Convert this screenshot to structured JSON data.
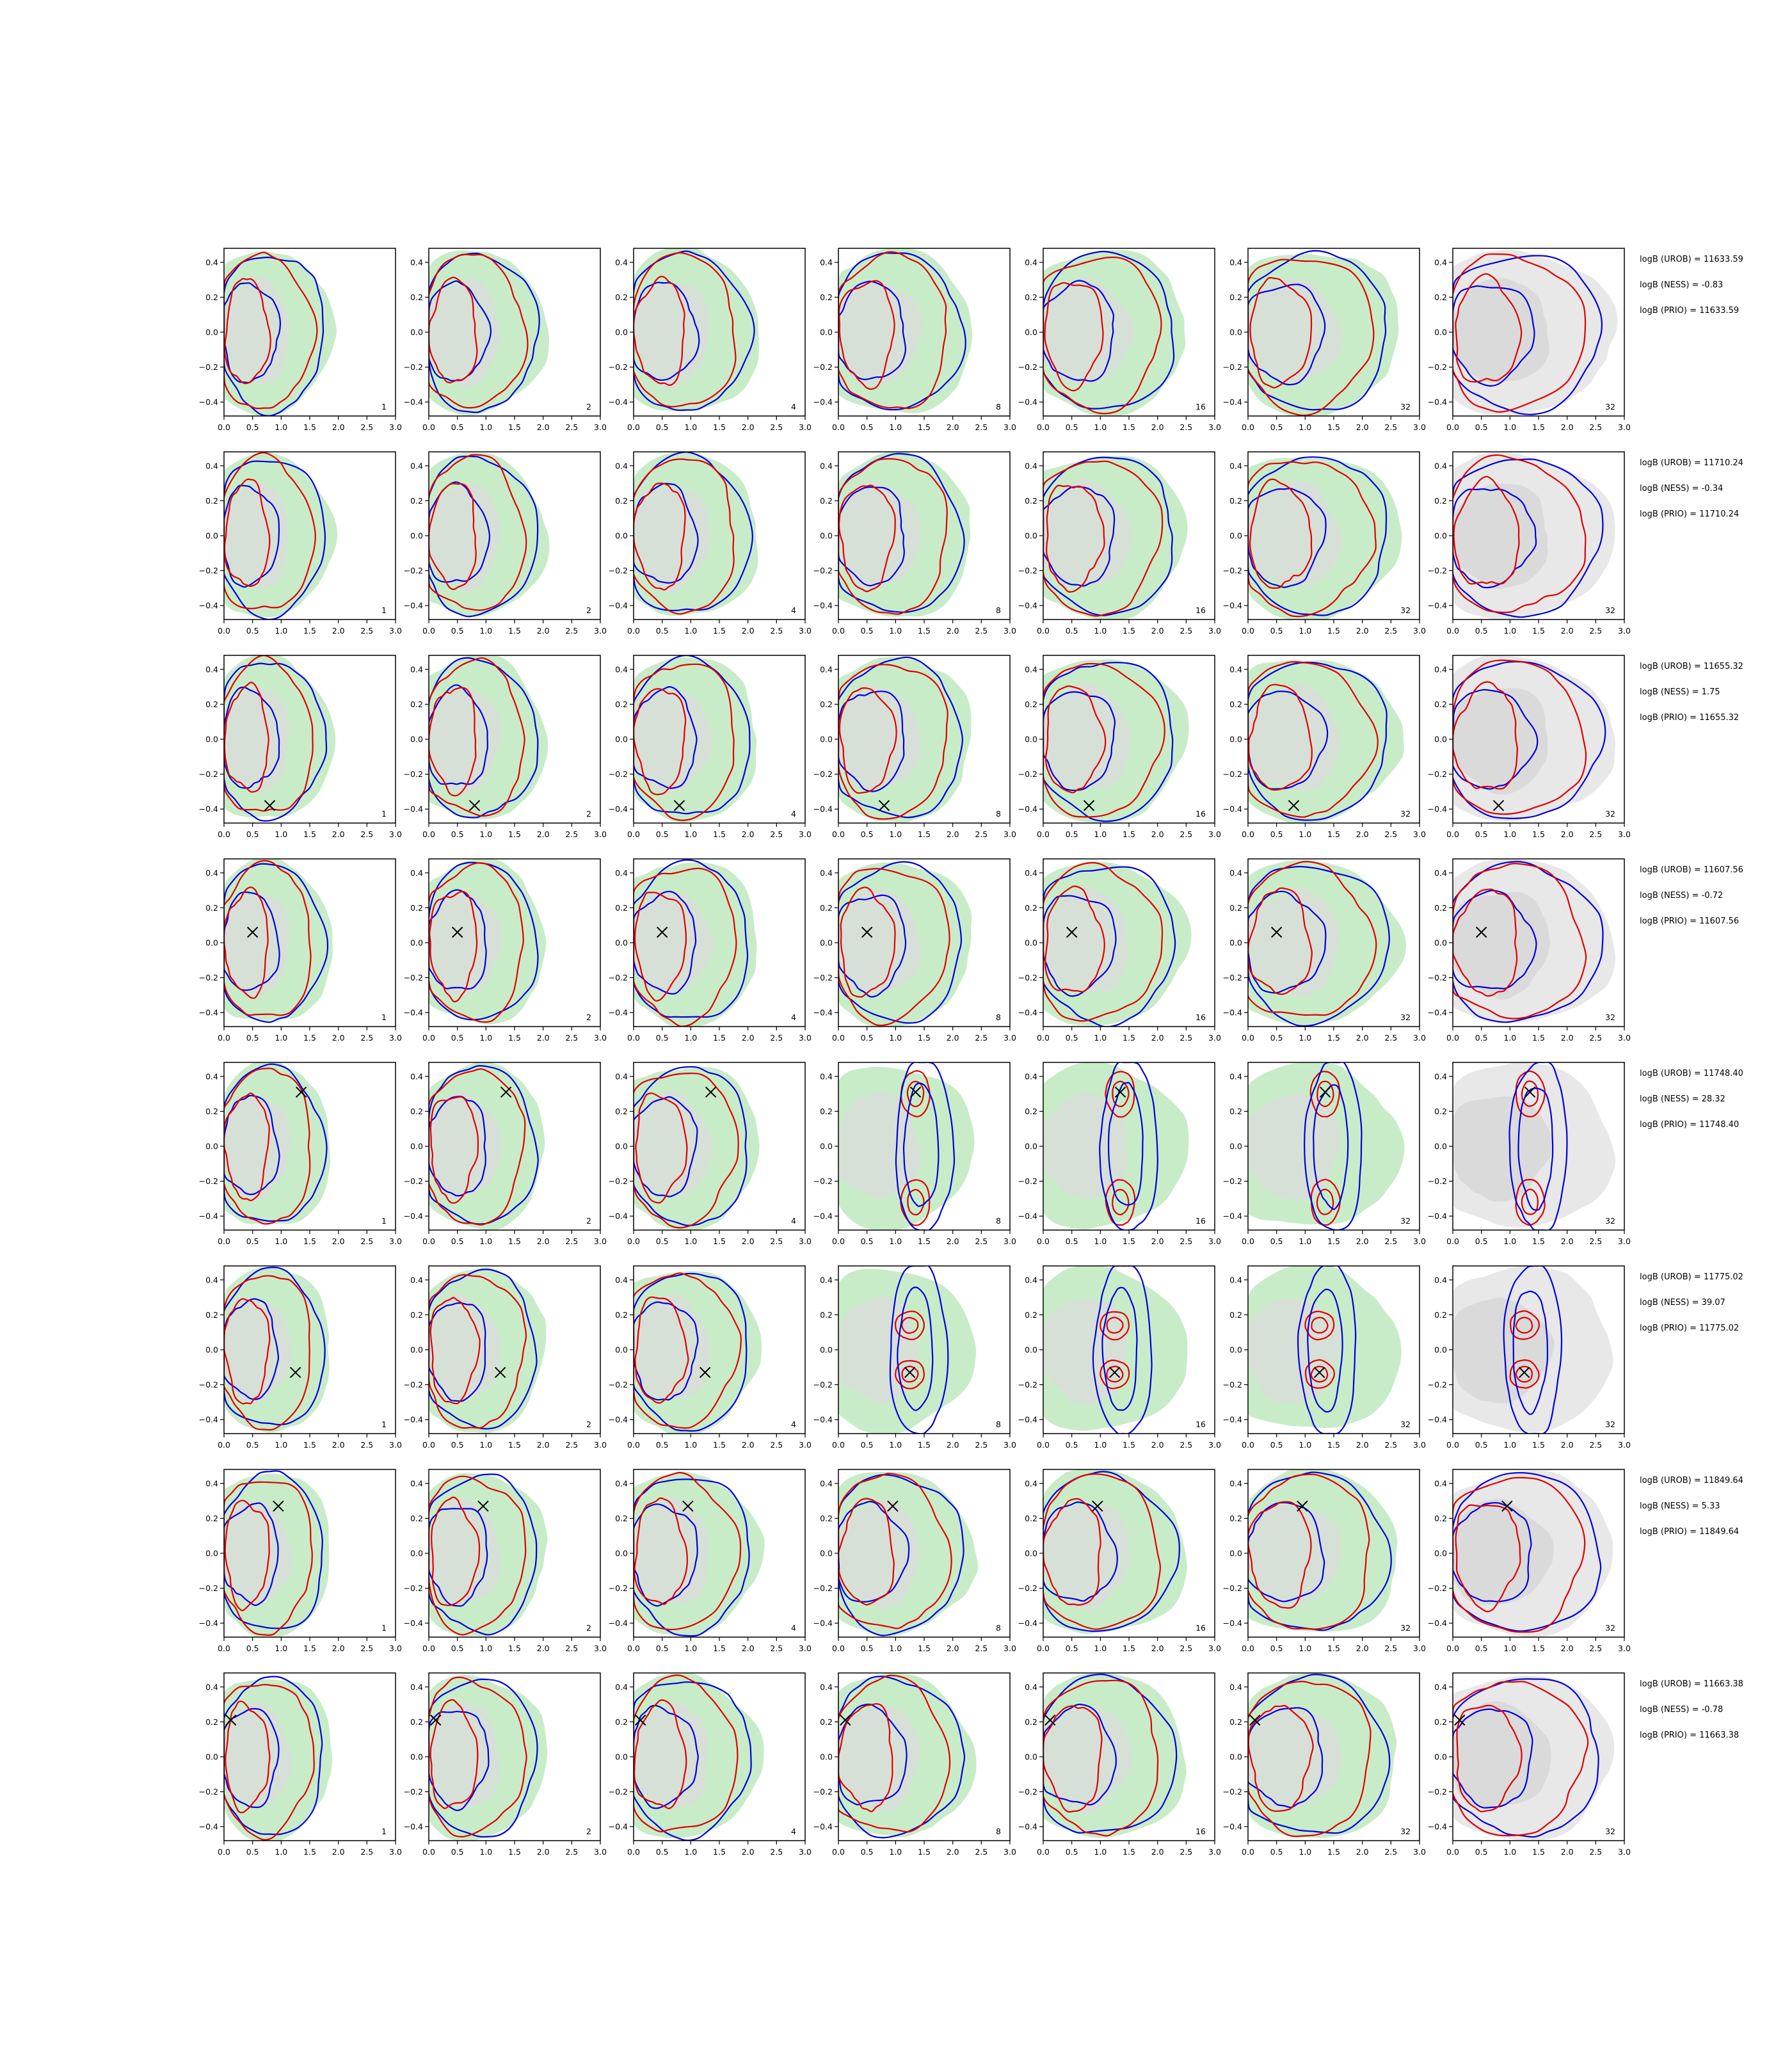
{
  "chart_data": {
    "type": "contour-grid",
    "x_ticks": [
      "0.0",
      "0.5",
      "1.0",
      "1.5",
      "2.0",
      "2.5",
      "3.0"
    ],
    "y_ticks": [
      "0.4",
      "0.2",
      "0.0",
      "−0.2",
      "−0.4"
    ],
    "xlim": [
      0,
      3
    ],
    "ylim": [
      -0.48,
      0.48
    ],
    "panel_labels": [
      "1",
      "2",
      "4",
      "8",
      "16",
      "32",
      "32"
    ],
    "colors": {
      "filled_main": "#c8ecc8",
      "filled_inner": "#dcdcdc",
      "filled_last": "#e8e8e8",
      "red": "#e00000",
      "blue": "#0000e0"
    },
    "rows": [
      {
        "marker": null,
        "notes": [
          "logB (UROB) = 11633.59",
          "logB (NESS) = -0.83",
          "logB (PRIO) = 11633.59"
        ]
      },
      {
        "marker": null,
        "notes": [
          "logB (UROB) = 11710.24",
          "logB (NESS) = -0.34",
          "logB (PRIO) = 11710.24"
        ]
      },
      {
        "marker": [
          0.8,
          -0.38
        ],
        "notes": [
          "logB (UROB) = 11655.32",
          "logB (NESS) = 1.75",
          "logB (PRIO) = 11655.32"
        ]
      },
      {
        "marker": [
          0.5,
          0.06
        ],
        "notes": [
          "logB (UROB) = 11607.56",
          "logB (NESS) = -0.72",
          "logB (PRIO) = 11607.56"
        ]
      },
      {
        "marker": [
          1.35,
          0.31
        ],
        "notes": [
          "logB (UROB) = 11748.40",
          "logB (NESS) = 28.32",
          "logB (PRIO) = 11748.40"
        ]
      },
      {
        "marker": [
          1.25,
          -0.13
        ],
        "notes": [
          "logB (UROB) = 11775.02",
          "logB (NESS) = 39.07",
          "logB (PRIO) = 11775.02"
        ]
      },
      {
        "marker": [
          0.95,
          0.27
        ],
        "notes": [
          "logB (UROB) = 11849.64",
          "logB (NESS) = 5.33",
          "logB (PRIO) = 11849.64"
        ]
      },
      {
        "marker": [
          0.12,
          0.21
        ],
        "notes": [
          "logB (UROB) = 11663.38",
          "logB (NESS) = -0.78",
          "logB (PRIO) = 11663.38"
        ]
      }
    ]
  }
}
